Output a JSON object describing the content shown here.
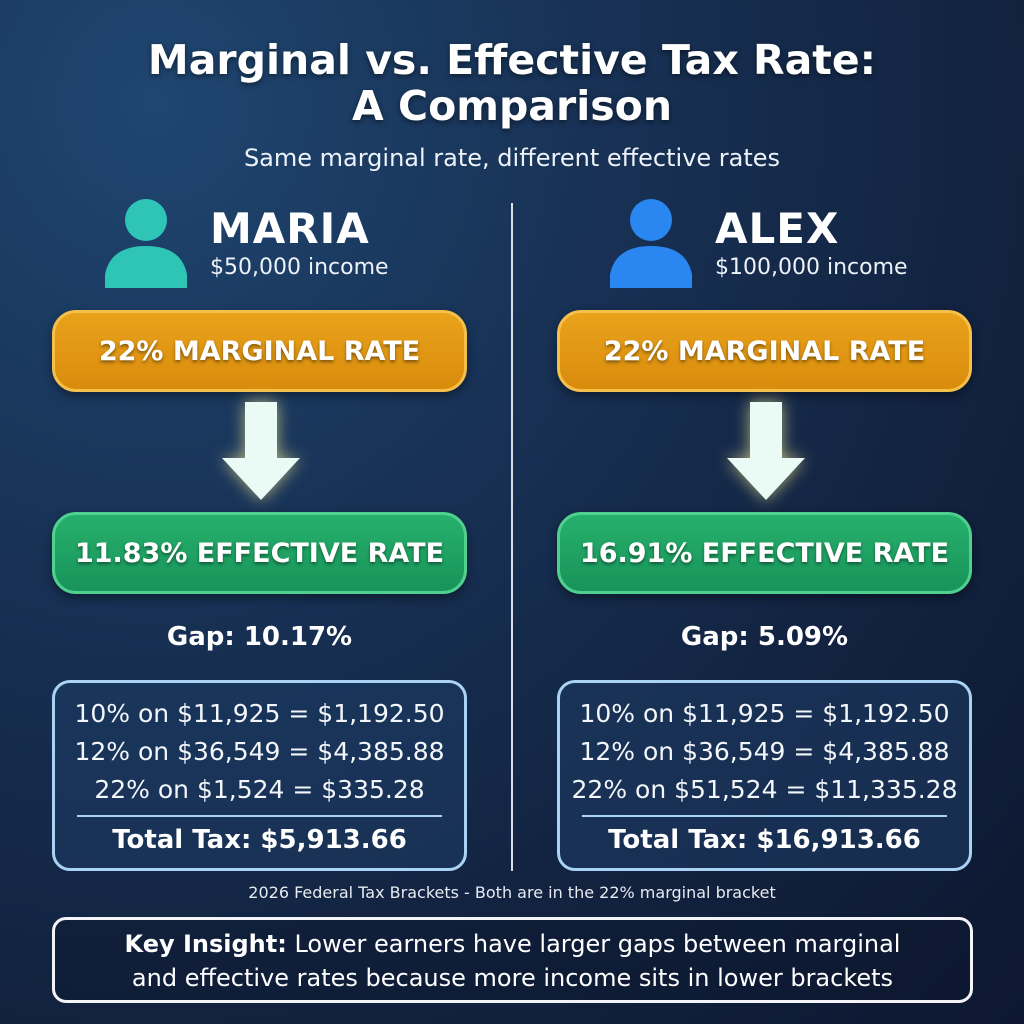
{
  "header": {
    "title_line1": "Marginal vs. Effective Tax Rate:",
    "title_line2": "A Comparison",
    "subtitle": "Same marginal rate, different effective rates"
  },
  "people": [
    {
      "name": "MARIA",
      "income": "$50,000 income",
      "icon_color": "#2ec4b6",
      "marginal": "22% MARGINAL RATE",
      "effective": "11.83% EFFECTIVE RATE",
      "gap": "Gap: 10.17%",
      "brackets": [
        "10% on $11,925 = $1,192.50",
        "12% on $36,549 = $4,385.88",
        "22% on $1,524 = $335.28"
      ],
      "total": "Total Tax: $5,913.66"
    },
    {
      "name": "ALEX",
      "income": "$100,000 income",
      "icon_color": "#2a86f0",
      "marginal": "22% MARGINAL RATE",
      "effective": "16.91% EFFECTIVE RATE",
      "gap": "Gap: 5.09%",
      "brackets": [
        "10% on $11,925 = $1,192.50",
        "12% on $36,549 = $4,385.88",
        "22% on $51,524 = $11,335.28"
      ],
      "total": "Total Tax: $16,913.66"
    }
  ],
  "colors": {
    "marginal": "#e09a14",
    "effective": "#1fa463",
    "arrow": "#eafbf6"
  },
  "footnote": "2026 Federal Tax Brackets - Both are in the 22% marginal bracket",
  "insight": {
    "label": "Key Insight:",
    "text_line1": " Lower earners have larger gaps between marginal",
    "text_line2": "and effective rates because more income sits in lower brackets"
  }
}
